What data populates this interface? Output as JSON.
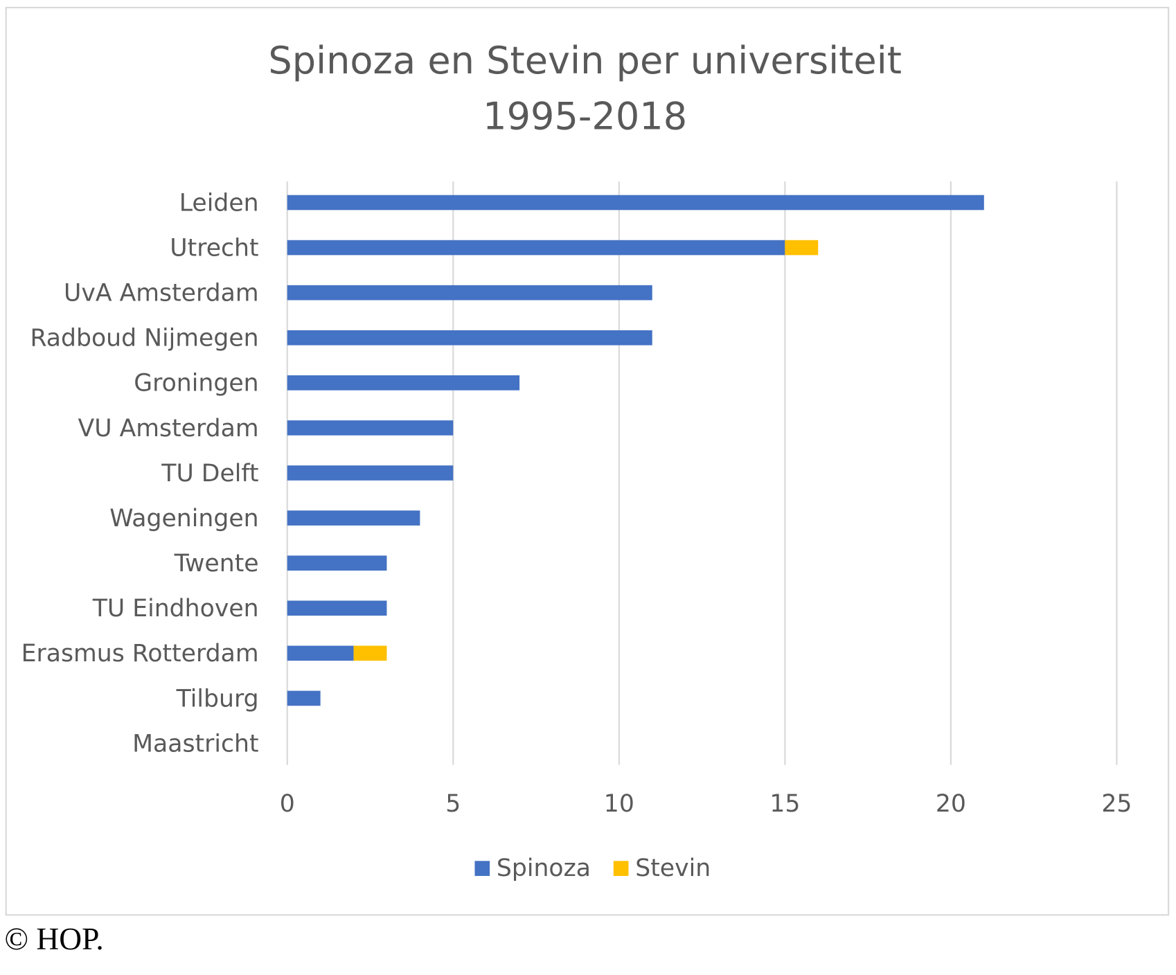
{
  "chart_data": {
    "type": "bar",
    "orientation": "horizontal",
    "stacked": true,
    "title": "Spinoza en Stevin per universiteit",
    "subtitle": "1995-2018",
    "categories": [
      "Leiden",
      "Utrecht",
      "UvA Amsterdam",
      "Radboud Nijmegen",
      "Groningen",
      "VU Amsterdam",
      "TU Delft",
      "Wageningen",
      "Twente",
      "TU Eindhoven",
      "Erasmus Rotterdam",
      "Tilburg",
      "Maastricht"
    ],
    "series": [
      {
        "name": "Spinoza",
        "color": "#4472C4",
        "values": [
          21,
          15,
          11,
          11,
          7,
          5,
          5,
          4,
          3,
          3,
          2,
          1,
          0
        ]
      },
      {
        "name": "Stevin",
        "color": "#FFC000",
        "values": [
          0,
          1,
          0,
          0,
          0,
          0,
          0,
          0,
          0,
          0,
          1,
          0,
          0
        ]
      }
    ],
    "xlim": [
      0,
      25
    ],
    "xticks": [
      "0",
      "5",
      "10",
      "15",
      "20",
      "25"
    ],
    "grid": true,
    "legend": "bottom"
  },
  "credit": "© HOP."
}
